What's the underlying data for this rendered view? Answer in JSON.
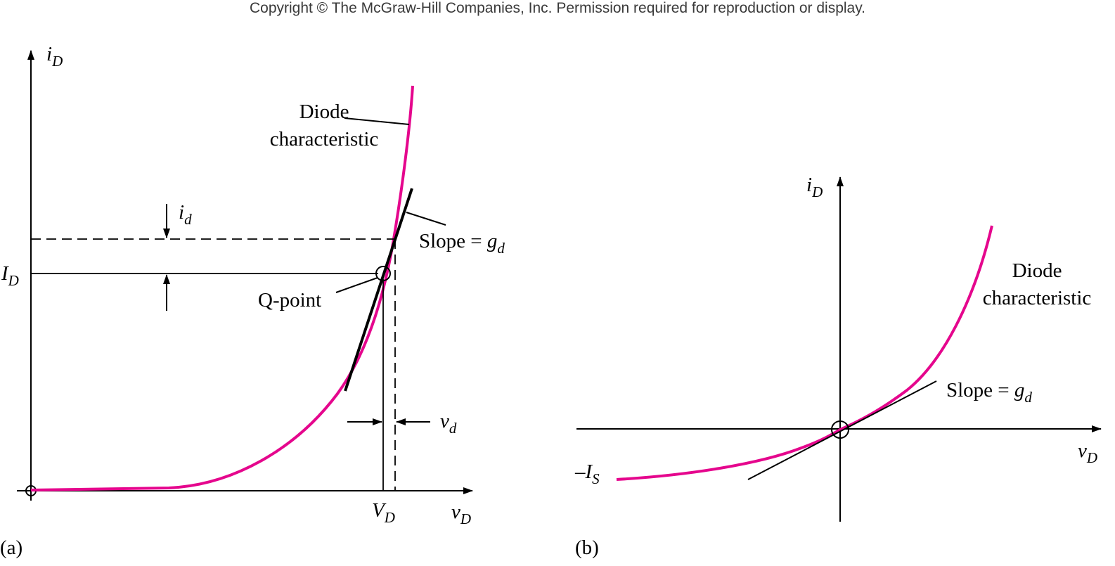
{
  "header": {
    "copyright": "Copyright © The McGraw-Hill Companies, Inc.  Permission required for reproduction or display."
  },
  "colors": {
    "curve": "#e5068d",
    "ink": "#000000"
  },
  "panel_a": {
    "panel_label": "(a)",
    "y_axis_main": "i",
    "y_axis_sub": "D",
    "x_axis_main": "v",
    "x_axis_sub": "D",
    "curve_label_line1": "Diode",
    "curve_label_line2": "characteristic",
    "small_current_main": "i",
    "small_current_sub": "d",
    "slope_text": "Slope = ",
    "slope_main": "g",
    "slope_sub": "d",
    "bias_current_main": "I",
    "bias_current_sub": "D",
    "qpoint_label": "Q-point",
    "small_voltage_main": "v",
    "small_voltage_sub": "d",
    "bias_voltage_main": "V",
    "bias_voltage_sub": "D"
  },
  "panel_b": {
    "panel_label": "(b)",
    "y_axis_main": "i",
    "y_axis_sub": "D",
    "x_axis_main": "v",
    "x_axis_sub": "D",
    "curve_label_line1": "Diode",
    "curve_label_line2": "characteristic",
    "slope_text": "Slope = ",
    "slope_main": "g",
    "slope_sub": "d",
    "saturation_main": "–I",
    "saturation_sub": "S"
  }
}
